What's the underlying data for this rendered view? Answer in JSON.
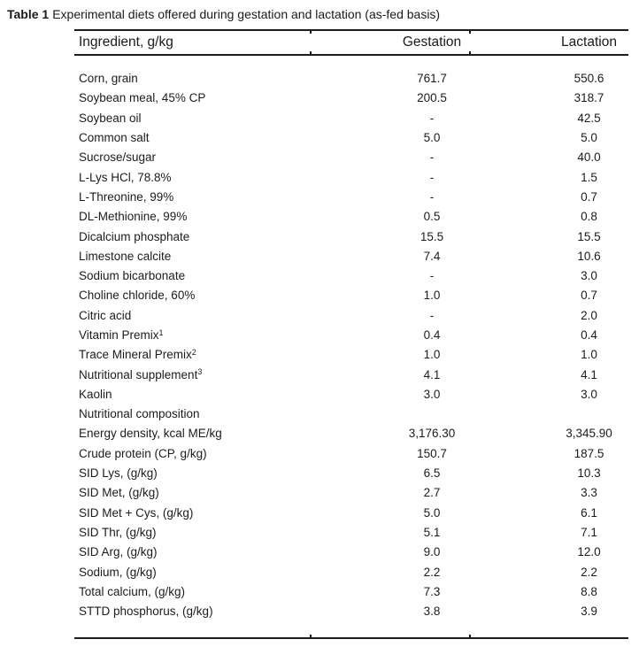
{
  "caption": {
    "label": "Table 1",
    "text": "Experimental diets offered during gestation and lactation (as-fed basis)"
  },
  "table": {
    "columns": [
      "Ingredient, g/kg",
      "Gestation",
      "Lactation"
    ],
    "rows": [
      {
        "name": "Corn, grain",
        "gestation": "761.7",
        "lactation": "550.6"
      },
      {
        "name": "Soybean meal, 45% CP",
        "gestation": "200.5",
        "lactation": "318.7"
      },
      {
        "name": "Soybean oil",
        "gestation": "-",
        "lactation": "42.5"
      },
      {
        "name": "Common salt",
        "gestation": "5.0",
        "lactation": "5.0"
      },
      {
        "name": "Sucrose/sugar",
        "gestation": "-",
        "lactation": "40.0"
      },
      {
        "name": "L-Lys HCl, 78.8%",
        "gestation": "-",
        "lactation": "1.5"
      },
      {
        "name": "L-Threonine, 99%",
        "gestation": "-",
        "lactation": "0.7"
      },
      {
        "name": "DL-Methionine, 99%",
        "gestation": "0.5",
        "lactation": "0.8"
      },
      {
        "name": "Dicalcium phosphate",
        "gestation": "15.5",
        "lactation": "15.5"
      },
      {
        "name": "Limestone calcite",
        "gestation": "7.4",
        "lactation": "10.6"
      },
      {
        "name": "Sodium bicarbonate",
        "gestation": "-",
        "lactation": "3.0"
      },
      {
        "name": "Choline chloride, 60%",
        "gestation": "1.0",
        "lactation": "0.7"
      },
      {
        "name": "Citric acid",
        "gestation": "-",
        "lactation": "2.0"
      },
      {
        "name": "Vitamin Premix",
        "sup": "1",
        "gestation": "0.4",
        "lactation": "0.4"
      },
      {
        "name": "Trace Mineral Premix",
        "sup": "2",
        "gestation": "1.0",
        "lactation": "1.0"
      },
      {
        "name": "Nutritional supplement",
        "sup": "3",
        "gestation": "4.1",
        "lactation": "4.1"
      },
      {
        "name": "Kaolin",
        "gestation": "3.0",
        "lactation": "3.0"
      },
      {
        "name": "Nutritional composition",
        "section": true,
        "gestation": "",
        "lactation": ""
      },
      {
        "name": "Energy density, kcal ME/kg",
        "gestation": "3,176.30",
        "lactation": "3,345.90"
      },
      {
        "name": "Crude protein (CP, g/kg)",
        "gestation": "150.7",
        "lactation": "187.5"
      },
      {
        "name": "SID Lys, (g/kg)",
        "gestation": "6.5",
        "lactation": "10.3"
      },
      {
        "name": "SID Met, (g/kg)",
        "gestation": "2.7",
        "lactation": "3.3"
      },
      {
        "name": "SID Met + Cys, (g/kg)",
        "gestation": "5.0",
        "lactation": "6.1"
      },
      {
        "name": "SID Thr, (g/kg)",
        "gestation": "5.1",
        "lactation": "7.1"
      },
      {
        "name": "SID Arg, (g/kg)",
        "gestation": "9.0",
        "lactation": "12.0"
      },
      {
        "name": "Sodium, (g/kg)",
        "gestation": "2.2",
        "lactation": "2.2"
      },
      {
        "name": "Total calcium, (g/kg)",
        "gestation": "7.3",
        "lactation": "8.8"
      },
      {
        "name": "STTD phosphorus, (g/kg)",
        "gestation": "3.8",
        "lactation": "3.9"
      }
    ]
  }
}
